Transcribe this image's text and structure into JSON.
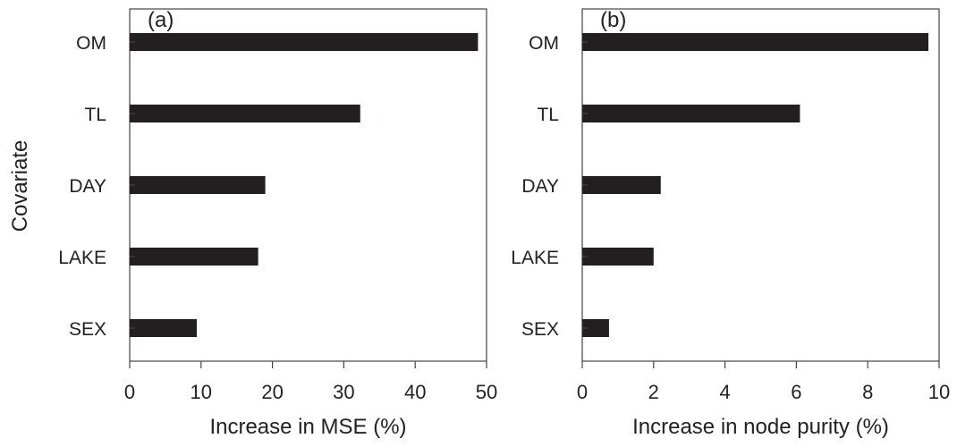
{
  "ylabel": "Covariate",
  "chart_data": [
    {
      "type": "bar",
      "orientation": "horizontal",
      "panel_label": "(a)",
      "categories": [
        "OM",
        "TL",
        "DAY",
        "LAKE",
        "SEX"
      ],
      "values": [
        48.8,
        32.3,
        19.0,
        18.0,
        9.4
      ],
      "xlabel": "Increase in MSE (%)",
      "xlim": [
        0,
        50
      ],
      "xticks": [
        "0",
        "10",
        "20",
        "30",
        "40",
        "50"
      ],
      "grid": false,
      "bar_color": "#231f20"
    },
    {
      "type": "bar",
      "orientation": "horizontal",
      "panel_label": "(b)",
      "categories": [
        "OM",
        "TL",
        "DAY",
        "LAKE",
        "SEX"
      ],
      "values": [
        9.7,
        6.1,
        2.2,
        2.0,
        0.75
      ],
      "xlabel": "Increase in node purity (%)",
      "xlim": [
        0,
        10
      ],
      "xticks": [
        "0",
        "2",
        "4",
        "6",
        "8",
        "10"
      ],
      "grid": false,
      "bar_color": "#231f20"
    }
  ]
}
